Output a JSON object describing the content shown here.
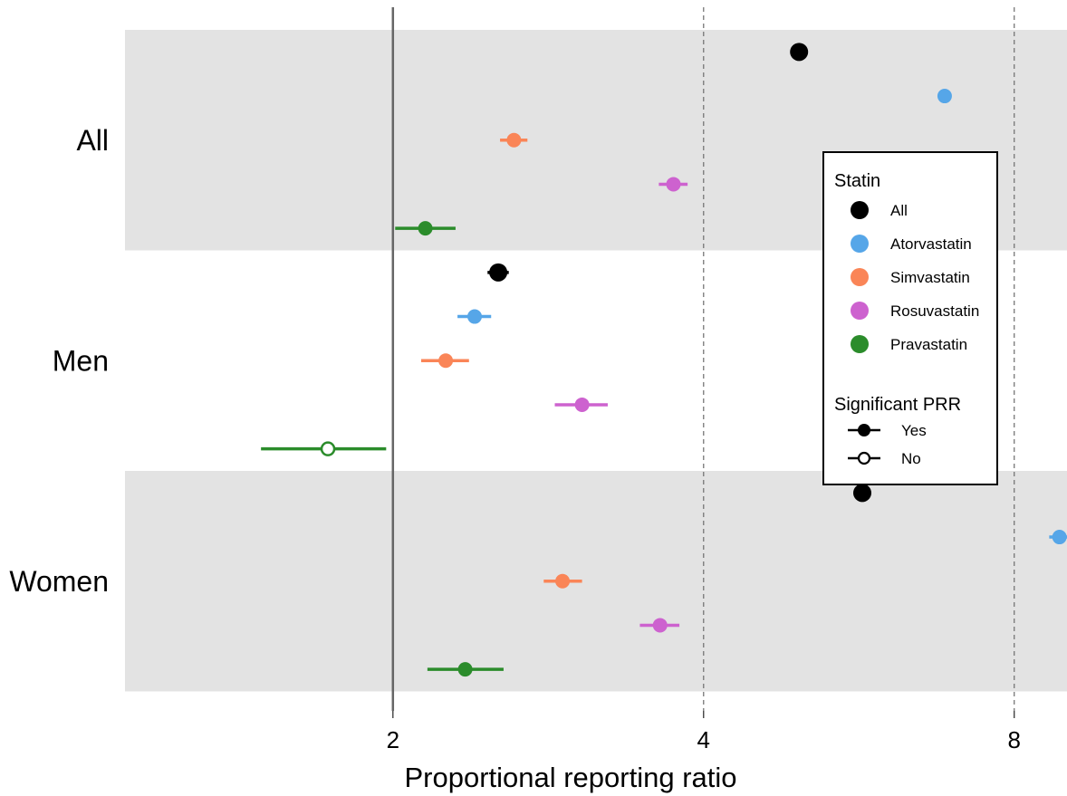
{
  "chart_data": {
    "type": "scatter",
    "subtype": "forest-plot",
    "xlabel": "Proportional reporting ratio",
    "x_scale": "log2",
    "xlim": [
      1.1,
      9.0
    ],
    "x_ticks": [
      2,
      4,
      8
    ],
    "x_tick_labels": [
      "2",
      "4",
      "8"
    ],
    "reference_line": 2,
    "dashed_lines": [
      4,
      8
    ],
    "groups": [
      "All",
      "Men",
      "Women"
    ],
    "series": [
      {
        "name": "All",
        "color": "#000000"
      },
      {
        "name": "Atorvastatin",
        "color": "#56a6e8"
      },
      {
        "name": "Simvastatin",
        "color": "#fa8557"
      },
      {
        "name": "Rosuvastatin",
        "color": "#cd62cf"
      },
      {
        "name": "Pravastatin",
        "color": "#2b8c2b"
      }
    ],
    "points": [
      {
        "group": "All",
        "series": "All",
        "estimate": 4.95,
        "ci": [
          4.93,
          4.97
        ],
        "significant": true
      },
      {
        "group": "All",
        "series": "Atorvastatin",
        "estimate": 6.85,
        "ci": [
          6.8,
          6.9
        ],
        "significant": true
      },
      {
        "group": "All",
        "series": "Simvastatin",
        "estimate": 2.62,
        "ci": [
          2.54,
          2.7
        ],
        "significant": true
      },
      {
        "group": "All",
        "series": "Rosuvastatin",
        "estimate": 3.74,
        "ci": [
          3.62,
          3.86
        ],
        "significant": true
      },
      {
        "group": "All",
        "series": "Pravastatin",
        "estimate": 2.15,
        "ci": [
          2.01,
          2.3
        ],
        "significant": true
      },
      {
        "group": "Men",
        "series": "All",
        "estimate": 2.53,
        "ci": [
          2.47,
          2.59
        ],
        "significant": true
      },
      {
        "group": "Men",
        "series": "Atorvastatin",
        "estimate": 2.4,
        "ci": [
          2.31,
          2.49
        ],
        "significant": true
      },
      {
        "group": "Men",
        "series": "Simvastatin",
        "estimate": 2.25,
        "ci": [
          2.13,
          2.37
        ],
        "significant": true
      },
      {
        "group": "Men",
        "series": "Rosuvastatin",
        "estimate": 3.05,
        "ci": [
          2.87,
          3.23
        ],
        "significant": true
      },
      {
        "group": "Men",
        "series": "Pravastatin",
        "estimate": 1.73,
        "ci": [
          1.49,
          1.97
        ],
        "significant": false
      },
      {
        "group": "Women",
        "series": "All",
        "estimate": 5.7,
        "ci": [
          5.67,
          5.73
        ],
        "significant": true
      },
      {
        "group": "Women",
        "series": "Atorvastatin",
        "estimate": 8.85,
        "ci": [
          8.65,
          9.05
        ],
        "significant": true
      },
      {
        "group": "Women",
        "series": "Simvastatin",
        "estimate": 2.92,
        "ci": [
          2.8,
          3.05
        ],
        "significant": true
      },
      {
        "group": "Women",
        "series": "Rosuvastatin",
        "estimate": 3.63,
        "ci": [
          3.47,
          3.79
        ],
        "significant": true
      },
      {
        "group": "Women",
        "series": "Pravastatin",
        "estimate": 2.35,
        "ci": [
          2.16,
          2.56
        ],
        "significant": true
      }
    ],
    "legend": {
      "placement": "right",
      "color_title": "Statin",
      "color_items": [
        "All",
        "Atorvastatin",
        "Simvastatin",
        "Rosuvastatin",
        "Pravastatin"
      ],
      "shape_title": "Significant PRR",
      "shape_items": [
        "Yes",
        "No"
      ]
    }
  }
}
